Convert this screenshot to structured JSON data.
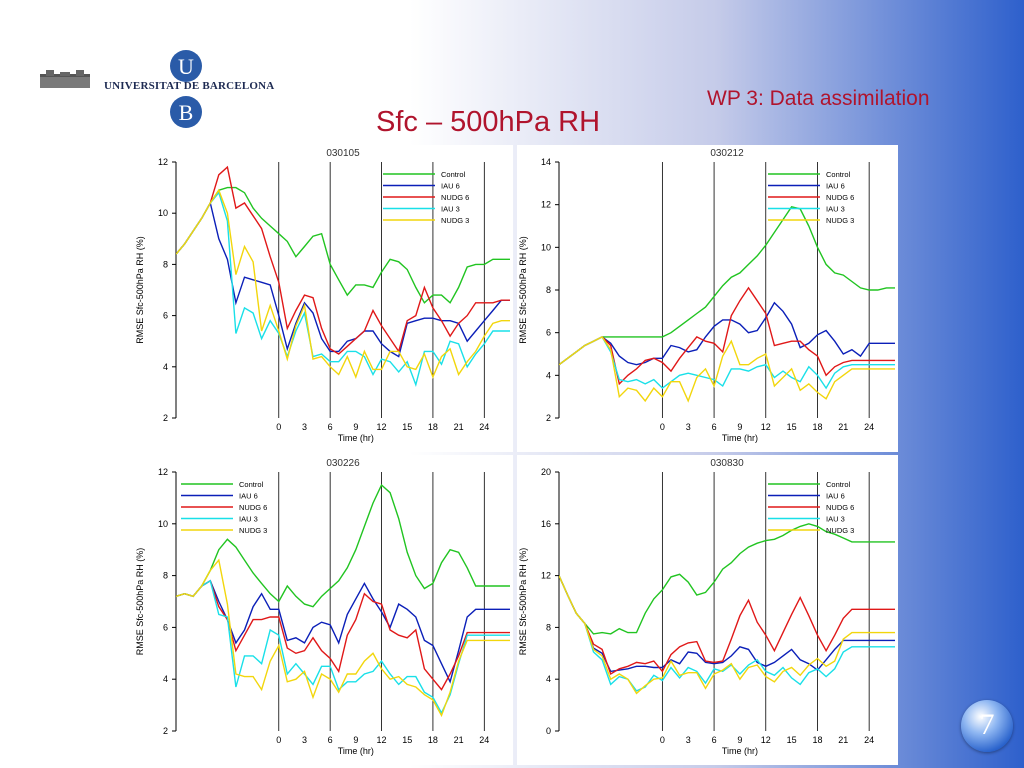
{
  "header": {
    "university_name": "UNIVERSITAT DE BARCELONA",
    "logo_letter_top": "U",
    "logo_letter_bottom": "B",
    "wp_label": "WP  3: Data assimilation",
    "title": "Sfc – 500hPa  RH",
    "slide_number": "7"
  },
  "colors": {
    "title": "#b0142d",
    "logo_blue": "#2a5ba8",
    "series": [
      "#21c421",
      "#0b1fb8",
      "#e01818",
      "#19e0e8",
      "#f2d60c"
    ]
  },
  "chart_data": [
    {
      "type": "line",
      "title": "030105",
      "xlabel": "Time (hr)",
      "ylabel": "RMSE Sfc-500hPa  RH (%)",
      "xlim": [
        -12,
        27
      ],
      "ylim": [
        2,
        12
      ],
      "xticks": [
        0,
        3,
        6,
        9,
        12,
        15,
        18,
        21,
        24
      ],
      "yticks": [
        2,
        4,
        6,
        8,
        10,
        12
      ],
      "vlines": [
        0,
        6,
        12,
        18,
        24
      ],
      "x": [
        -12,
        -11,
        -10,
        -9,
        -8,
        -7,
        -6,
        -5,
        -4,
        -3,
        -2,
        -1,
        0,
        1,
        2,
        3,
        4,
        5,
        6,
        7,
        8,
        9,
        10,
        11,
        12,
        13,
        14,
        15,
        16,
        17,
        18,
        19,
        20,
        21,
        22,
        23,
        24,
        25,
        26,
        27
      ],
      "series": [
        {
          "name": "Control",
          "values": [
            8.4,
            8.8,
            9.3,
            9.8,
            10.4,
            10.9,
            11.0,
            11.0,
            10.8,
            10.2,
            9.8,
            9.5,
            9.2,
            8.9,
            8.3,
            8.7,
            9.1,
            9.2,
            8.0,
            7.4,
            6.8,
            7.2,
            7.2,
            7.1,
            7.7,
            8.2,
            8.1,
            7.8,
            7.1,
            6.5,
            6.8,
            6.8,
            6.5,
            7.1,
            7.9,
            8.0,
            8.0,
            8.2,
            8.2,
            8.2
          ]
        },
        {
          "name": "IAU 6",
          "values": [
            8.4,
            8.8,
            9.3,
            9.8,
            10.4,
            9.0,
            8.2,
            6.5,
            7.5,
            7.4,
            7.3,
            7.2,
            6.0,
            4.7,
            5.7,
            6.5,
            6.1,
            5.1,
            4.6,
            4.6,
            5.0,
            5.1,
            5.4,
            5.4,
            4.9,
            4.6,
            4.4,
            5.7,
            5.8,
            5.9,
            5.9,
            5.8,
            5.8,
            5.7,
            5.0,
            5.4,
            5.8,
            6.2,
            6.6,
            6.6
          ]
        },
        {
          "name": "NUDG 6",
          "values": [
            8.4,
            8.8,
            9.3,
            9.8,
            10.4,
            11.5,
            11.8,
            10.2,
            10.4,
            9.9,
            9.4,
            8.3,
            7.3,
            5.5,
            6.2,
            6.8,
            6.7,
            5.5,
            4.7,
            4.5,
            4.8,
            5.1,
            5.4,
            6.2,
            5.6,
            5.1,
            4.6,
            5.8,
            6.0,
            7.1,
            6.3,
            5.8,
            5.2,
            5.7,
            6.0,
            6.5,
            6.5,
            6.5,
            6.6,
            6.6
          ]
        },
        {
          "name": "IAU 3",
          "values": [
            8.4,
            8.8,
            9.3,
            9.8,
            10.4,
            10.8,
            9.7,
            5.3,
            6.3,
            6.1,
            5.1,
            5.8,
            5.3,
            4.4,
            5.4,
            6.1,
            4.4,
            4.5,
            4.2,
            4.2,
            4.6,
            4.6,
            4.4,
            3.7,
            4.3,
            4.2,
            3.8,
            4.2,
            3.3,
            4.6,
            4.6,
            4.1,
            5.0,
            4.9,
            4.0,
            4.5,
            4.9,
            5.4,
            5.4,
            5.4
          ]
        },
        {
          "name": "NUDG 3",
          "values": [
            8.4,
            8.8,
            9.3,
            9.8,
            10.4,
            10.9,
            10.0,
            7.6,
            8.7,
            8.1,
            5.4,
            6.4,
            5.4,
            4.3,
            5.6,
            6.4,
            4.3,
            4.4,
            4.0,
            3.7,
            4.4,
            3.6,
            4.6,
            3.9,
            3.9,
            4.6,
            4.6,
            4.0,
            3.9,
            4.5,
            3.6,
            4.4,
            4.7,
            3.7,
            4.2,
            4.6,
            5.2,
            5.7,
            5.8,
            5.8
          ]
        }
      ]
    },
    {
      "type": "line",
      "title": "030212",
      "xlabel": "Time (hr)",
      "ylabel": "RMSE Sfc-500hPa  RH (%)",
      "xlim": [
        -12,
        27
      ],
      "ylim": [
        2,
        14
      ],
      "xticks": [
        0,
        3,
        6,
        9,
        12,
        15,
        18,
        21,
        24
      ],
      "yticks": [
        2,
        4,
        6,
        8,
        10,
        12,
        14
      ],
      "vlines": [
        0,
        6,
        12,
        18,
        24
      ],
      "x": [
        -12,
        -11,
        -10,
        -9,
        -8,
        -7,
        -6,
        -5,
        -4,
        -3,
        -2,
        -1,
        0,
        1,
        2,
        3,
        4,
        5,
        6,
        7,
        8,
        9,
        10,
        11,
        12,
        13,
        14,
        15,
        16,
        17,
        18,
        19,
        20,
        21,
        22,
        23,
        24,
        25,
        26,
        27
      ],
      "series": [
        {
          "name": "Control",
          "values": [
            4.5,
            4.8,
            5.1,
            5.4,
            5.6,
            5.8,
            5.8,
            5.8,
            5.8,
            5.8,
            5.8,
            5.8,
            5.8,
            6.0,
            6.3,
            6.6,
            6.9,
            7.2,
            7.7,
            8.2,
            8.6,
            8.8,
            9.2,
            9.6,
            10.1,
            10.7,
            11.3,
            11.9,
            11.8,
            11.0,
            10.0,
            9.2,
            8.8,
            8.7,
            8.4,
            8.1,
            8.0,
            8.0,
            8.1,
            8.1
          ]
        },
        {
          "name": "IAU 6",
          "values": [
            4.5,
            4.8,
            5.1,
            5.4,
            5.6,
            5.8,
            5.5,
            4.9,
            4.6,
            4.5,
            4.6,
            4.8,
            4.8,
            5.4,
            5.3,
            5.1,
            5.2,
            5.8,
            6.3,
            6.6,
            6.6,
            6.4,
            6.0,
            6.1,
            6.7,
            7.4,
            7.0,
            6.4,
            5.3,
            5.5,
            5.9,
            6.1,
            5.6,
            5.0,
            5.2,
            4.9,
            5.5,
            5.5,
            5.5,
            5.5
          ]
        },
        {
          "name": "NUDG 6",
          "values": [
            4.5,
            4.8,
            5.1,
            5.4,
            5.6,
            5.8,
            5.4,
            3.6,
            4.0,
            4.3,
            4.7,
            4.8,
            4.6,
            4.2,
            4.8,
            5.3,
            5.8,
            5.6,
            5.5,
            5.1,
            6.8,
            7.5,
            8.1,
            7.5,
            6.9,
            5.4,
            5.5,
            5.6,
            5.6,
            5.2,
            4.9,
            4.0,
            4.4,
            4.6,
            4.7,
            4.7,
            4.7,
            4.7,
            4.7,
            4.7
          ]
        },
        {
          "name": "IAU 3",
          "values": [
            4.5,
            4.8,
            5.1,
            5.4,
            5.6,
            5.8,
            5.1,
            3.8,
            3.7,
            3.8,
            3.6,
            3.8,
            3.4,
            3.7,
            4.0,
            4.1,
            4.0,
            3.9,
            3.8,
            3.5,
            4.3,
            4.3,
            4.2,
            4.4,
            4.5,
            3.9,
            4.2,
            3.9,
            3.7,
            4.4,
            4.0,
            3.4,
            4.1,
            4.4,
            4.5,
            4.5,
            4.5,
            4.5,
            4.5,
            4.5
          ]
        },
        {
          "name": "NUDG 3",
          "values": [
            4.5,
            4.8,
            5.1,
            5.4,
            5.6,
            5.8,
            5.2,
            3.0,
            3.4,
            3.3,
            2.8,
            3.4,
            3.0,
            3.7,
            3.7,
            2.8,
            3.9,
            4.3,
            3.5,
            4.9,
            5.6,
            4.5,
            4.5,
            4.8,
            5.0,
            3.5,
            3.9,
            4.3,
            3.3,
            3.6,
            3.2,
            2.9,
            3.7,
            4.0,
            4.3,
            4.3,
            4.3,
            4.3,
            4.3,
            4.3
          ]
        }
      ]
    },
    {
      "type": "line",
      "title": "030226",
      "xlabel": "Time (hr)",
      "ylabel": "RMSE Sfc-500hPa  RH (%)",
      "xlim": [
        -12,
        27
      ],
      "ylim": [
        2,
        12
      ],
      "xticks": [
        0,
        3,
        6,
        9,
        12,
        15,
        18,
        21,
        24
      ],
      "yticks": [
        2,
        4,
        6,
        8,
        10,
        12
      ],
      "vlines": [
        0,
        6,
        12,
        18,
        24
      ],
      "x": [
        -12,
        -11,
        -10,
        -9,
        -8,
        -7,
        -6,
        -5,
        -4,
        -3,
        -2,
        -1,
        0,
        1,
        2,
        3,
        4,
        5,
        6,
        7,
        8,
        9,
        10,
        11,
        12,
        13,
        14,
        15,
        16,
        17,
        18,
        19,
        20,
        21,
        22,
        23,
        24,
        25,
        26,
        27
      ],
      "series": [
        {
          "name": "Control",
          "values": [
            7.2,
            7.3,
            7.2,
            7.6,
            8.2,
            9.0,
            9.4,
            9.1,
            8.6,
            8.1,
            7.7,
            7.3,
            7.0,
            7.6,
            7.2,
            6.9,
            6.8,
            7.2,
            7.5,
            7.8,
            8.3,
            9.0,
            9.9,
            10.8,
            11.5,
            11.2,
            10.2,
            8.9,
            8.0,
            7.5,
            7.7,
            8.5,
            9.0,
            8.9,
            8.3,
            7.6,
            7.6,
            7.6,
            7.6,
            7.6
          ]
        },
        {
          "name": "IAU 6",
          "values": [
            7.2,
            7.3,
            7.2,
            7.6,
            7.8,
            7.0,
            6.3,
            5.4,
            5.9,
            6.8,
            7.3,
            6.7,
            6.7,
            5.5,
            5.6,
            5.4,
            6.0,
            6.2,
            6.1,
            5.4,
            6.5,
            7.1,
            7.7,
            7.1,
            6.6,
            6.0,
            6.9,
            6.7,
            6.4,
            5.5,
            5.3,
            4.6,
            3.9,
            5.1,
            6.4,
            6.7,
            6.7,
            6.7,
            6.7,
            6.7
          ]
        },
        {
          "name": "NUDG 6",
          "values": [
            7.2,
            7.3,
            7.2,
            7.6,
            7.8,
            6.8,
            6.3,
            5.1,
            5.7,
            6.3,
            6.3,
            6.4,
            6.4,
            5.2,
            5.0,
            5.1,
            5.6,
            5.1,
            4.8,
            4.3,
            5.7,
            6.3,
            7.3,
            7.0,
            6.9,
            5.9,
            5.7,
            5.6,
            5.9,
            4.4,
            4.0,
            3.6,
            4.2,
            4.9,
            5.8,
            5.8,
            5.8,
            5.8,
            5.8,
            5.8
          ]
        },
        {
          "name": "IAU 3",
          "values": [
            7.2,
            7.3,
            7.2,
            7.6,
            7.8,
            6.5,
            6.4,
            3.7,
            4.9,
            4.9,
            4.6,
            5.9,
            5.7,
            4.2,
            4.6,
            4.2,
            3.8,
            4.5,
            4.5,
            3.6,
            3.9,
            3.9,
            4.2,
            4.3,
            4.7,
            4.2,
            3.8,
            4.1,
            4.1,
            3.5,
            3.3,
            2.7,
            3.4,
            4.6,
            5.7,
            5.7,
            5.7,
            5.7,
            5.7,
            5.7
          ]
        },
        {
          "name": "NUDG 3",
          "values": [
            7.2,
            7.3,
            7.2,
            7.6,
            8.2,
            8.6,
            6.9,
            4.2,
            4.1,
            4.1,
            3.6,
            4.7,
            5.3,
            3.9,
            4.0,
            4.3,
            3.3,
            4.2,
            4.0,
            3.5,
            4.2,
            4.2,
            4.7,
            5.0,
            4.4,
            4.0,
            4.1,
            3.8,
            3.7,
            3.4,
            3.2,
            2.6,
            3.5,
            4.7,
            5.5,
            5.5,
            5.5,
            5.5,
            5.5,
            5.5
          ]
        }
      ]
    },
    {
      "type": "line",
      "title": "030830",
      "xlabel": "Time (hr)",
      "ylabel": "RMSE Sfc-500hPa  RH (%)",
      "xlim": [
        -12,
        27
      ],
      "ylim": [
        0,
        20
      ],
      "xticks": [
        0,
        3,
        6,
        9,
        12,
        15,
        18,
        21,
        24
      ],
      "yticks": [
        0,
        4,
        8,
        12,
        16,
        20
      ],
      "vlines": [
        0,
        6,
        12,
        18,
        24
      ],
      "x": [
        -12,
        -11,
        -10,
        -9,
        -8,
        -7,
        -6,
        -5,
        -4,
        -3,
        -2,
        -1,
        0,
        1,
        2,
        3,
        4,
        5,
        6,
        7,
        8,
        9,
        10,
        11,
        12,
        13,
        14,
        15,
        16,
        17,
        18,
        19,
        20,
        21,
        22,
        23,
        24,
        25,
        26,
        27
      ],
      "series": [
        {
          "name": "Control",
          "values": [
            12.0,
            10.5,
            9.1,
            8.3,
            7.5,
            7.6,
            7.5,
            7.9,
            7.6,
            7.6,
            9.1,
            10.2,
            10.9,
            11.9,
            12.1,
            11.5,
            10.5,
            10.7,
            11.5,
            12.5,
            13.0,
            13.7,
            14.2,
            14.5,
            14.7,
            14.8,
            15.1,
            15.5,
            15.8,
            16.0,
            15.8,
            15.4,
            15.2,
            14.9,
            14.6,
            14.6,
            14.6,
            14.6,
            14.6,
            14.6
          ]
        },
        {
          "name": "IAU 6",
          "values": [
            12.0,
            10.5,
            9.1,
            8.3,
            6.4,
            6.0,
            4.6,
            4.7,
            4.8,
            5.0,
            5.0,
            4.9,
            4.9,
            5.5,
            5.2,
            6.1,
            6.0,
            5.3,
            5.2,
            5.3,
            5.8,
            6.5,
            6.3,
            5.3,
            5.0,
            5.3,
            5.8,
            6.3,
            5.5,
            5.2,
            4.7,
            5.5,
            6.3,
            7.0,
            7.0,
            7.0,
            7.0,
            7.0,
            7.0,
            7.0
          ]
        },
        {
          "name": "NUDG 6",
          "values": [
            12.0,
            10.5,
            9.1,
            8.3,
            6.7,
            6.3,
            4.4,
            4.8,
            5.0,
            5.3,
            5.2,
            5.4,
            4.6,
            5.9,
            6.5,
            6.8,
            6.9,
            5.4,
            5.3,
            5.4,
            7.1,
            8.9,
            10.1,
            8.4,
            7.4,
            6.2,
            7.6,
            9.0,
            10.3,
            8.9,
            7.4,
            6.2,
            7.4,
            8.7,
            9.4,
            9.4,
            9.4,
            9.4,
            9.4,
            9.4
          ]
        },
        {
          "name": "IAU 3",
          "values": [
            12.0,
            10.5,
            9.1,
            8.3,
            6.1,
            5.5,
            3.6,
            4.2,
            4.0,
            3.1,
            3.4,
            4.3,
            3.9,
            4.9,
            4.1,
            4.9,
            4.6,
            3.7,
            4.8,
            4.6,
            5.1,
            4.4,
            5.1,
            5.5,
            4.6,
            4.3,
            4.9,
            4.1,
            3.6,
            4.5,
            4.8,
            4.2,
            4.8,
            6.1,
            6.5,
            6.5,
            6.5,
            6.5,
            6.5,
            6.5
          ]
        },
        {
          "name": "NUDG 3",
          "values": [
            12.0,
            10.5,
            9.1,
            8.3,
            6.3,
            5.8,
            4.0,
            4.4,
            4.0,
            2.9,
            3.5,
            4.0,
            4.1,
            5.4,
            4.3,
            4.5,
            4.5,
            3.3,
            4.4,
            4.7,
            5.2,
            4.0,
            4.9,
            5.1,
            4.2,
            3.8,
            4.6,
            4.9,
            4.3,
            5.1,
            5.6,
            5.0,
            5.4,
            7.1,
            7.6,
            7.6,
            7.6,
            7.6,
            7.6,
            7.6
          ]
        }
      ]
    }
  ]
}
